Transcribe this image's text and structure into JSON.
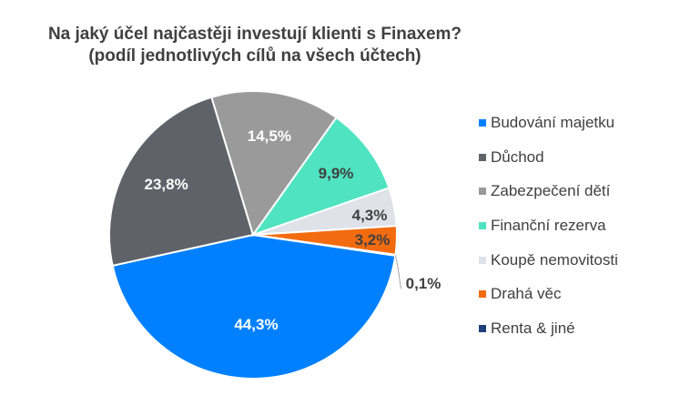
{
  "chart_data": {
    "type": "pie",
    "title": [
      "Na jaký účel najčastěji investují klienti s Finaxem?",
      "(podíl jednotlivých cílů na všech účtech)"
    ],
    "categories": [
      "Budování majetku",
      "Důchod",
      "Zabezpečení dětí",
      "Finanční rezerva",
      "Koupě nemovitosti",
      "Drahá věc",
      "Renta & jiné"
    ],
    "values": [
      44.3,
      23.8,
      14.5,
      9.9,
      4.3,
      3.2,
      0.1
    ],
    "labels": [
      "44,3%",
      "23,8%",
      "14,5%",
      "9,9%",
      "4,3%",
      "3,2%",
      "0,1%"
    ],
    "colors": [
      "#0080FF",
      "#5F6268",
      "#9A9A9A",
      "#4FE3C1",
      "#DFE2E9",
      "#F26B0F",
      "#1F3F7A"
    ],
    "label_colors": [
      "#FFFFFF",
      "#FFFFFF",
      "#FFFFFF",
      "#404040",
      "#404040",
      "#404040",
      "#404040"
    ],
    "legend_position": "right"
  }
}
